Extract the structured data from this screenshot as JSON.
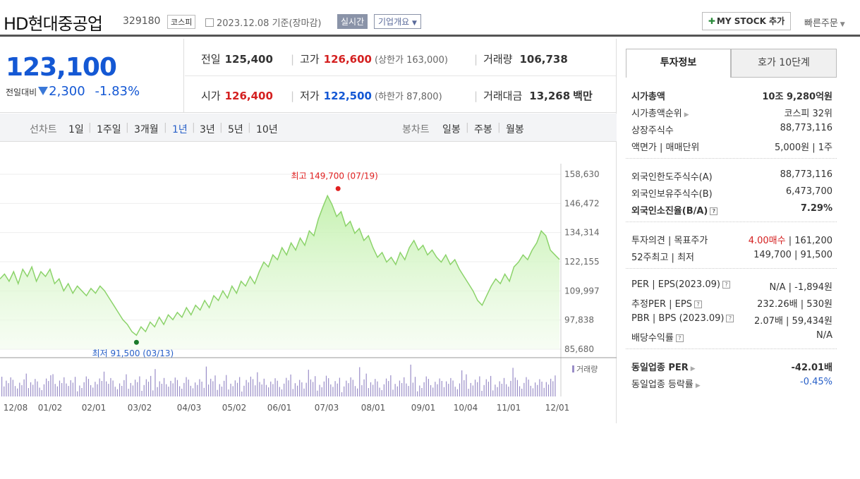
{
  "header": {
    "title": "HD현대중공업",
    "code": "329180",
    "market": "코스피",
    "date": "2023.12.08 기준(장마감)",
    "realtime": "실시간",
    "overview": "기업개요",
    "mystock_label": "MY STOCK 추가",
    "quick_order": "빠른주문"
  },
  "price": {
    "current": "123,100",
    "change_label": "전일대비",
    "change": "2,300",
    "change_pct": "-1.83%",
    "prev_label": "전일",
    "prev": "125,400",
    "high_label": "고가",
    "high": "126,600",
    "upper_limit": "(상한가 163,000)",
    "volume_label": "거래량",
    "volume": "106,738",
    "open_label": "시가",
    "open": "126,400",
    "low_label": "저가",
    "low": "122,500",
    "lower_limit": "(하한가 87,800)",
    "amount_label": "거래대금",
    "amount": "13,268",
    "amount_unit": "백만"
  },
  "chart_nav": {
    "line_label": "선차트",
    "line_options": [
      "1일",
      "1주일",
      "3개월",
      "1년",
      "3년",
      "5년",
      "10년"
    ],
    "active": "1년",
    "candle_label": "봉차트",
    "candle_options": [
      "일봉",
      "주봉",
      "월봉"
    ]
  },
  "chart_data": {
    "type": "area",
    "y_ticks": [
      "158,630",
      "146,472",
      "134,314",
      "122,155",
      "109,997",
      "97,838",
      "85,680"
    ],
    "ylim": [
      85680,
      158630
    ],
    "x_ticks": [
      "12/08",
      "01/02",
      "02/01",
      "03/02",
      "04/03",
      "05/02",
      "06/01",
      "07/03",
      "08/01",
      "09/01",
      "10/04",
      "11/01",
      "12/01"
    ],
    "high_annotation": "최고 149,700 (07/19)",
    "low_annotation": "최저 91,500 (03/13)",
    "volume_label": "거래량",
    "series_color": "#8cd36b",
    "series": [
      {
        "values": [
          115000,
          117000,
          114000,
          118000,
          113000,
          119000,
          116000,
          120000,
          114000,
          118000,
          116000,
          119000,
          113000,
          115000,
          110000,
          113000,
          109000,
          112000,
          110000,
          108000,
          111000,
          109000,
          112000,
          110000,
          107000,
          104000,
          101000,
          98000,
          96000,
          93000,
          91500,
          95000,
          93000,
          97000,
          95000,
          99000,
          96000,
          100000,
          98000,
          101000,
          99000,
          103000,
          100000,
          104000,
          102000,
          106000,
          103000,
          108000,
          106000,
          110000,
          107000,
          112000,
          109000,
          114000,
          112000,
          116000,
          113000,
          118000,
          122000,
          120000,
          125000,
          123000,
          128000,
          125000,
          130000,
          127000,
          132000,
          129000,
          135000,
          133000,
          140000,
          145000,
          149700,
          146000,
          141000,
          143000,
          137000,
          139000,
          134000,
          136000,
          131000,
          133000,
          128000,
          124000,
          126000,
          122000,
          124000,
          121000,
          126000,
          123000,
          128000,
          131000,
          127000,
          129000,
          125000,
          127000,
          124000,
          122000,
          125000,
          121000,
          123000,
          119000,
          116000,
          113000,
          110000,
          106000,
          104000,
          108000,
          112000,
          115000,
          113000,
          117000,
          114000,
          120000,
          122000,
          125000,
          123000,
          127000,
          130000,
          135000,
          133000,
          127000,
          125000,
          123100
        ]
      }
    ]
  },
  "invest": {
    "tab_info": "투자정보",
    "tab_hoga": "호가 10단계",
    "rows1": [
      {
        "k": "시가총액",
        "v": "10조 9,280억원",
        "bold": true
      },
      {
        "k": "시가총액순위",
        "v": "코스피 32위",
        "arrow": true
      },
      {
        "k": "상장주식수",
        "v": "88,773,116"
      },
      {
        "k": "액면가 | 매매단위",
        "v": "5,000원 | 1주"
      }
    ],
    "rows2": [
      {
        "k": "외국인한도주식수(A)",
        "v": "88,773,116"
      },
      {
        "k": "외국인보유주식수(B)",
        "v": "6,473,700"
      },
      {
        "k": "외국인소진율(B/A)",
        "v": "7.29%",
        "bold": true,
        "q": true
      }
    ],
    "rows3": [
      {
        "k": "투자의견 | 목표주가",
        "v_red": "4.00매수",
        "v": " | 161,200"
      },
      {
        "k": "52주최고 | 최저",
        "v": "149,700 | 91,500"
      }
    ],
    "rows4": [
      {
        "k": "PER | EPS(2023.09)",
        "v": "N/A | -1,894원",
        "q": true
      },
      {
        "k": "추정PER | EPS",
        "v": "232.26배 | 530원",
        "q": true
      },
      {
        "k": "PBR | BPS (2023.09)",
        "v": "2.07배 | 59,434원",
        "q": true
      },
      {
        "k": "배당수익률",
        "v": "N/A",
        "q": true
      }
    ],
    "rows5": [
      {
        "k": "동일업종 PER",
        "v": "-42.01배",
        "bold": true,
        "arrow": true
      },
      {
        "k": "동일업종 등락률",
        "v": "-0.45%",
        "blue": true,
        "arrow": true
      }
    ]
  }
}
